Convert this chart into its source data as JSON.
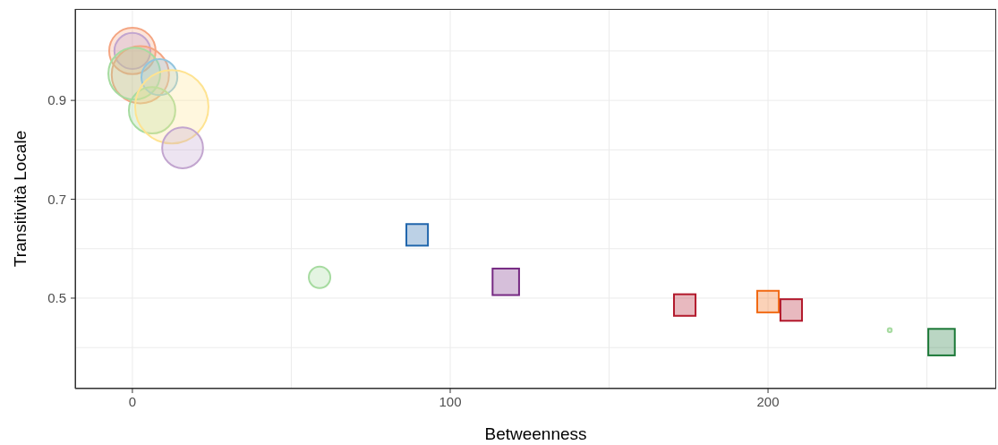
{
  "chart_data": {
    "type": "bubble",
    "xlabel": "Betweenness",
    "ylabel": "Transitività Locale",
    "xlim": [
      -18,
      271.8
    ],
    "ylim": [
      0.317,
      1.085
    ],
    "xticks": [
      0,
      {
        "value": 50,
        "label": null
      },
      100,
      {
        "value": 150,
        "label": null
      },
      200,
      {
        "value": 250,
        "label": null
      }
    ],
    "yticks": [
      {
        "value": 0.4,
        "label": null
      },
      0.5,
      {
        "value": 0.6,
        "label": null
      },
      0.7,
      {
        "value": 0.8,
        "label": null
      },
      0.9,
      {
        "value": 1.0,
        "label": null
      }
    ],
    "grid": true,
    "series": [
      {
        "marker": "circle",
        "x": [
          0,
          0,
          2.5,
          0.6,
          8.5,
          6.2,
          12.4,
          15.8,
          58.9,
          238.3
        ],
        "values": [
          1.0,
          1.0,
          0.952,
          0.954,
          0.947,
          0.88,
          0.887,
          0.804,
          0.542,
          0.435
        ],
        "sizes": [
          0.4,
          0.24,
          0.61,
          0.5,
          0.24,
          0.4,
          1,
          0.31,
          0.086,
          0.003
        ],
        "colors": [
          "#f4a582",
          "#c2a5cf",
          "#f4a582",
          "#a6dba0",
          "#92c5de",
          "#a6dba0",
          "#fee391",
          "#c2a5cf",
          "#a6dba0",
          "#a6dba0"
        ]
      },
      {
        "marker": "square",
        "x": [
          89.6,
          117.5,
          173.8,
          200,
          207.3,
          254.6
        ],
        "values": [
          0.628,
          0.533,
          0.486,
          0.493,
          0.476,
          0.411
        ],
        "sizes": [
          0.11,
          0.166,
          0.11,
          0.11,
          0.11,
          0.166
        ],
        "colors": [
          "#2166ac",
          "#762a83",
          "#b2182b",
          "#f16913",
          "#b2182b",
          "#1b7837"
        ]
      }
    ]
  }
}
